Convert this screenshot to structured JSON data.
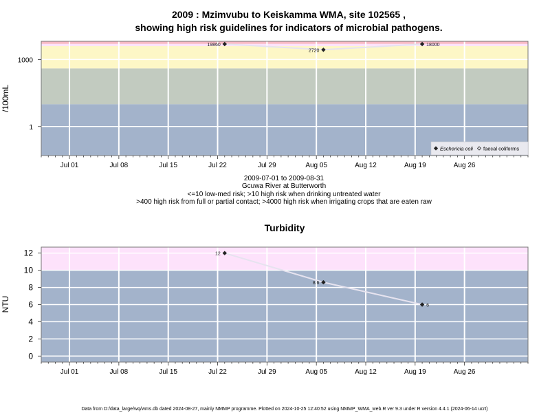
{
  "page": {
    "title_line1": "2009 : Mzimvubu to Keiskamma WMA, site 102565 ,",
    "title_line2": "showing high risk guidelines for indicators of microbial pathogens.",
    "caption_lines": [
      "2009-07-01 to 2009-08-31",
      "Gcuwa River at Butterworth",
      "<=10 low-med risk; >10 high risk when drinking untreated water",
      ">400 high risk from full or partial contact; >4000 high risk when irrigating crops that are eaten raw"
    ],
    "footer": "Data from D:/data_large/wq/wms.db dated 2024-08-27, mainly NMMP programme. Plotted on 2024-10-25 12:40:52 using NMMP_WMA_web.R ver 9.3 under R version 4.4.1 (2024-06-14 ucrt)"
  },
  "colors": {
    "band_blue": "#a3b3cb",
    "band_grey": "#c2cbc0",
    "band_yellow": "#fdf7c6",
    "band_pink": "#fde2fb",
    "band_red": "#f8b9c4",
    "line": "#e6e3ef",
    "marker": "#222222",
    "grid": "#ffffff"
  },
  "chart_data": [
    {
      "type": "line",
      "title": "",
      "xlabel": "",
      "ylabel": "/100mL",
      "yscale": "log",
      "ylim": [
        0.05,
        6500
      ],
      "xlim": [
        "2009-06-27",
        "2009-09-04"
      ],
      "x_ticks": [
        "Jul 01",
        "Jul 08",
        "Jul 15",
        "Jul 22",
        "Jul 29",
        "Aug 05",
        "Aug 12",
        "Aug 19",
        "Aug 26"
      ],
      "x_tick_dates": [
        "2009-07-01",
        "2009-07-08",
        "2009-07-15",
        "2009-07-22",
        "2009-07-29",
        "2009-08-05",
        "2009-08-12",
        "2009-08-19",
        "2009-08-26"
      ],
      "y_ticks": [
        1,
        1000
      ],
      "y_tick_labels": [
        "1",
        "1000"
      ],
      "bands": [
        {
          "from": 0.05,
          "to": 10,
          "color": "band_blue"
        },
        {
          "from": 10,
          "to": 400,
          "color": "band_grey"
        },
        {
          "from": 400,
          "to": 4000,
          "color": "band_yellow"
        },
        {
          "from": 4000,
          "to": 5000,
          "color": "band_pink"
        },
        {
          "from": 5000,
          "to": 6500,
          "color": "band_red"
        }
      ],
      "series": [
        {
          "name": "Eschericia coli",
          "x": [
            "2009-07-23",
            "2009-08-06",
            "2009-08-20"
          ],
          "y": [
            19860,
            2720,
            18000
          ],
          "labels": [
            "19860",
            "2720",
            "18000"
          ],
          "marker": "filled-diamond"
        }
      ],
      "legend": {
        "position": "bottom-right",
        "items": [
          {
            "label": "Eschericia coli",
            "marker": "filled-diamond",
            "italic": true
          },
          {
            "label": "faecal coliforms",
            "marker": "open-diamond",
            "italic": false
          }
        ]
      },
      "grid": true
    },
    {
      "type": "line",
      "title": "Turbidity",
      "xlabel": "",
      "ylabel": "NTU",
      "ylim": [
        -0.7,
        12.7
      ],
      "xlim": [
        "2009-06-27",
        "2009-09-04"
      ],
      "x_ticks": [
        "Jul 01",
        "Jul 08",
        "Jul 15",
        "Jul 22",
        "Jul 29",
        "Aug 05",
        "Aug 12",
        "Aug 19",
        "Aug 26"
      ],
      "x_tick_dates": [
        "2009-07-01",
        "2009-07-08",
        "2009-07-15",
        "2009-07-22",
        "2009-07-29",
        "2009-08-05",
        "2009-08-12",
        "2009-08-19",
        "2009-08-26"
      ],
      "y_ticks": [
        0,
        2,
        4,
        6,
        8,
        10,
        12
      ],
      "y_tick_labels": [
        "0",
        "2",
        "4",
        "6",
        "8",
        "10",
        "12"
      ],
      "bands": [
        {
          "from": -0.7,
          "to": 10,
          "color": "band_blue"
        },
        {
          "from": 10,
          "to": 12.7,
          "color": "band_pink"
        }
      ],
      "series": [
        {
          "name": "",
          "x": [
            "2009-07-23",
            "2009-08-06",
            "2009-08-20"
          ],
          "y": [
            12,
            8.6,
            6
          ],
          "labels": [
            "12",
            "8.6",
            "6"
          ],
          "marker": "filled-diamond"
        }
      ],
      "grid": true
    }
  ]
}
